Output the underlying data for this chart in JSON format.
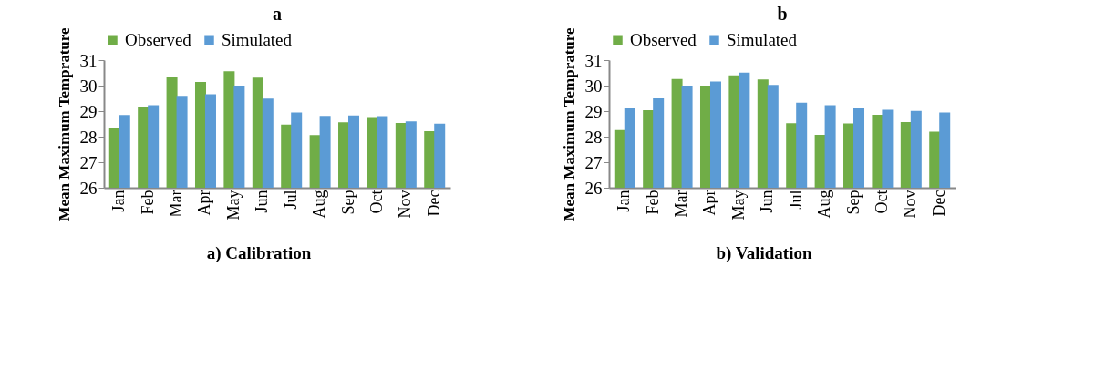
{
  "chart_data": [
    {
      "type": "bar",
      "title": "a",
      "ylabel": "Mean Maximum Temprature",
      "categories": [
        "Jan",
        "Feb",
        "Mar",
        "Apr",
        "May",
        "Jun",
        "Jul",
        "Aug",
        "Sep",
        "Oct",
        "Nov",
        "Dec"
      ],
      "ylim": [
        26,
        31
      ],
      "yticks": [
        26,
        27,
        28,
        29,
        30,
        31
      ],
      "grid": false,
      "legend": "top",
      "annotations": [
        "a) Calibration"
      ],
      "series": [
        {
          "name": "Observed",
          "color": "#70ad47",
          "values": [
            28.34,
            29.18,
            30.35,
            30.14,
            30.56,
            30.31,
            28.47,
            28.06,
            28.56,
            28.77,
            28.54,
            28.21
          ]
        },
        {
          "name": "Simulated",
          "color": "#5b9bd5",
          "values": [
            28.85,
            29.23,
            29.6,
            29.66,
            30.0,
            29.49,
            28.95,
            28.81,
            28.83,
            28.8,
            28.6,
            28.51
          ]
        }
      ]
    },
    {
      "type": "bar",
      "title": "b",
      "ylabel": "Mean Maximum Temprature",
      "categories": [
        "Jan",
        "Feb",
        "Mar",
        "Apr",
        "May",
        "Jun",
        "Jul",
        "Aug",
        "Sep",
        "Oct",
        "Nov",
        "Dec"
      ],
      "ylim": [
        26,
        31
      ],
      "yticks": [
        26,
        27,
        28,
        29,
        30,
        31
      ],
      "grid": false,
      "legend": "top",
      "annotations": [
        "b)  Validation"
      ],
      "series": [
        {
          "name": "Observed",
          "color": "#70ad47",
          "values": [
            28.26,
            29.04,
            30.26,
            30.0,
            30.4,
            30.24,
            28.53,
            28.07,
            28.52,
            28.86,
            28.57,
            28.2
          ]
        },
        {
          "name": "Simulated",
          "color": "#5b9bd5",
          "values": [
            29.13,
            29.53,
            30.0,
            30.16,
            30.51,
            30.03,
            29.33,
            29.23,
            29.13,
            29.05,
            29.01,
            28.95
          ]
        }
      ]
    }
  ]
}
